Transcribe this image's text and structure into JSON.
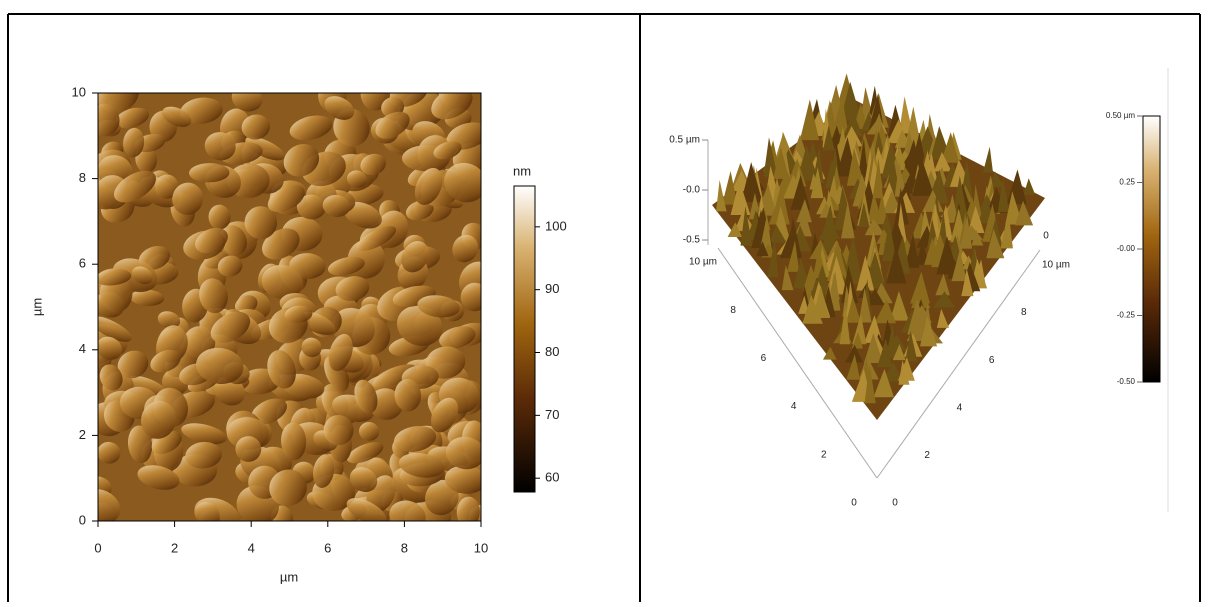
{
  "chart_data": [
    {
      "type": "heatmap",
      "xlabel": "µm",
      "ylabel": "µm",
      "xlim": [
        0,
        10
      ],
      "ylim": [
        0,
        10
      ],
      "xticks": [
        0,
        2,
        4,
        6,
        8,
        10
      ],
      "yticks": [
        0,
        2,
        4,
        6,
        8,
        10
      ],
      "colorbar": {
        "label": "nm",
        "lim": [
          57.8,
          106.5
        ],
        "ticks": [
          60,
          70,
          80,
          90,
          100
        ]
      }
    },
    {
      "type": "surface3d",
      "zlim": [
        -0.5,
        0.5
      ],
      "zticks": [
        {
          "value": 0.5,
          "label": "0.5 µm"
        },
        {
          "value": 0,
          "label": "-0.0"
        },
        -0.5
      ],
      "xlim": [
        0,
        10
      ],
      "ylim": [
        0,
        10
      ],
      "xticks": [
        0,
        2,
        4,
        6,
        8,
        {
          "value": 10,
          "label": "10 µm"
        }
      ],
      "yticks": [
        0,
        2,
        4,
        6,
        8,
        {
          "value": 10,
          "label": "10 µm"
        }
      ],
      "back_ticks": [
        0
      ],
      "colorbar": {
        "lim": [
          -0.5,
          0.5
        ],
        "ticks": [
          {
            "value": 0.5,
            "label": "0.50 µm"
          },
          0.25,
          {
            "value": 0,
            "label": "-0.00"
          },
          -0.25,
          {
            "value": -0.5,
            "label": "-0.50"
          }
        ]
      }
    }
  ]
}
